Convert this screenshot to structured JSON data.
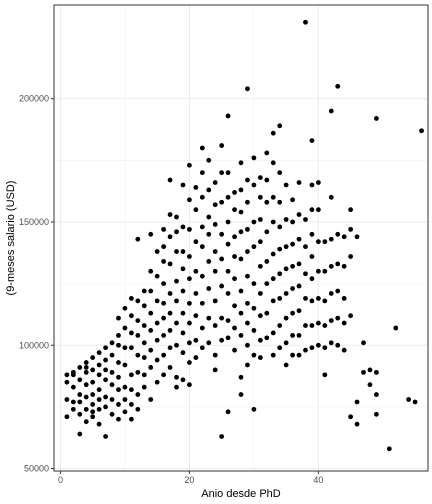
{
  "chart_data": {
    "type": "scatter",
    "title": "",
    "xlabel": "Anio desde PhD",
    "ylabel": "(9-meses salario (USD)",
    "xlim": [
      -1,
      57
    ],
    "ylim": [
      49000,
      238000
    ],
    "x_ticks": [
      0,
      20,
      40
    ],
    "y_ticks": [
      50000,
      100000,
      150000,
      200000
    ],
    "x_tick_labels": [
      "0",
      "20",
      "40"
    ],
    "y_tick_labels": [
      "50000",
      "100000",
      "150000",
      "200000"
    ],
    "grid": true,
    "legend": "none",
    "point_color": "#000000",
    "points": [
      [
        1,
        88000
      ],
      [
        1,
        85000
      ],
      [
        1,
        78000
      ],
      [
        1,
        71000
      ],
      [
        2,
        89000
      ],
      [
        2,
        83000
      ],
      [
        2,
        77000
      ],
      [
        2,
        74000
      ],
      [
        2,
        88000
      ],
      [
        3,
        91000
      ],
      [
        3,
        86000
      ],
      [
        3,
        80000
      ],
      [
        3,
        72000
      ],
      [
        3,
        64000
      ],
      [
        3,
        77000
      ],
      [
        4,
        93000
      ],
      [
        4,
        89000
      ],
      [
        4,
        84000
      ],
      [
        4,
        79000
      ],
      [
        4,
        74000
      ],
      [
        4,
        69000
      ],
      [
        4,
        91000
      ],
      [
        5,
        95000
      ],
      [
        5,
        90000
      ],
      [
        5,
        85000
      ],
      [
        5,
        80000
      ],
      [
        5,
        76000
      ],
      [
        5,
        73000
      ],
      [
        5,
        71000
      ],
      [
        6,
        97000
      ],
      [
        6,
        92000
      ],
      [
        6,
        88000
      ],
      [
        6,
        82000
      ],
      [
        6,
        78000
      ],
      [
        6,
        74000
      ],
      [
        6,
        68000
      ],
      [
        7,
        99000
      ],
      [
        7,
        94000
      ],
      [
        7,
        86000
      ],
      [
        7,
        79000
      ],
      [
        7,
        75000
      ],
      [
        7,
        63000
      ],
      [
        7,
        90000
      ],
      [
        8,
        101000
      ],
      [
        8,
        96000
      ],
      [
        8,
        89000
      ],
      [
        8,
        84000
      ],
      [
        8,
        78000
      ],
      [
        8,
        72000
      ],
      [
        9,
        111000
      ],
      [
        9,
        104000
      ],
      [
        9,
        100000
      ],
      [
        9,
        93000
      ],
      [
        9,
        87000
      ],
      [
        9,
        82000
      ],
      [
        9,
        76000
      ],
      [
        9,
        70000
      ],
      [
        10,
        115000
      ],
      [
        10,
        107000
      ],
      [
        10,
        99000
      ],
      [
        10,
        92000
      ],
      [
        10,
        83000
      ],
      [
        10,
        78000
      ],
      [
        10,
        73000
      ],
      [
        11,
        119000
      ],
      [
        11,
        112000
      ],
      [
        11,
        105000
      ],
      [
        11,
        99000
      ],
      [
        11,
        88000
      ],
      [
        11,
        82000
      ],
      [
        11,
        76000
      ],
      [
        11,
        70000
      ],
      [
        12,
        143000
      ],
      [
        12,
        118000
      ],
      [
        12,
        110000
      ],
      [
        12,
        104000
      ],
      [
        12,
        96000
      ],
      [
        12,
        89000
      ],
      [
        12,
        80000
      ],
      [
        12,
        74000
      ],
      [
        13,
        122000
      ],
      [
        13,
        116000
      ],
      [
        13,
        108000
      ],
      [
        13,
        101000
      ],
      [
        13,
        95000
      ],
      [
        13,
        88000
      ],
      [
        13,
        83000
      ],
      [
        14,
        145000
      ],
      [
        14,
        130000
      ],
      [
        14,
        122000
      ],
      [
        14,
        113000
      ],
      [
        14,
        106000
      ],
      [
        14,
        98000
      ],
      [
        14,
        91000
      ],
      [
        14,
        78000
      ],
      [
        15,
        138000
      ],
      [
        15,
        128000
      ],
      [
        15,
        118000
      ],
      [
        15,
        109000
      ],
      [
        15,
        102000
      ],
      [
        15,
        94000
      ],
      [
        15,
        85000
      ],
      [
        16,
        147000
      ],
      [
        16,
        140000
      ],
      [
        16,
        134000
      ],
      [
        16,
        125000
      ],
      [
        16,
        117000
      ],
      [
        16,
        111000
      ],
      [
        16,
        104000
      ],
      [
        16,
        96000
      ],
      [
        16,
        88000
      ],
      [
        17,
        167000
      ],
      [
        17,
        153000
      ],
      [
        17,
        144000
      ],
      [
        17,
        133000
      ],
      [
        17,
        121000
      ],
      [
        17,
        113000
      ],
      [
        17,
        106000
      ],
      [
        17,
        99000
      ],
      [
        17,
        91000
      ],
      [
        18,
        152000
      ],
      [
        18,
        146000
      ],
      [
        18,
        138000
      ],
      [
        18,
        126000
      ],
      [
        18,
        118000
      ],
      [
        18,
        109000
      ],
      [
        18,
        100000
      ],
      [
        18,
        87000
      ],
      [
        18,
        83000
      ],
      [
        19,
        165000
      ],
      [
        19,
        148000
      ],
      [
        19,
        138000
      ],
      [
        19,
        131000
      ],
      [
        19,
        122000
      ],
      [
        19,
        113000
      ],
      [
        19,
        105000
      ],
      [
        19,
        97000
      ],
      [
        19,
        86000
      ],
      [
        20,
        173000
      ],
      [
        20,
        159000
      ],
      [
        20,
        147000
      ],
      [
        20,
        136000
      ],
      [
        20,
        127000
      ],
      [
        20,
        117000
      ],
      [
        20,
        109000
      ],
      [
        20,
        101000
      ],
      [
        20,
        93000
      ],
      [
        20,
        84000
      ],
      [
        21,
        164000
      ],
      [
        21,
        155000
      ],
      [
        21,
        142000
      ],
      [
        21,
        130000
      ],
      [
        21,
        121000
      ],
      [
        21,
        112000
      ],
      [
        21,
        102000
      ],
      [
        21,
        95000
      ],
      [
        22,
        180000
      ],
      [
        22,
        170000
      ],
      [
        22,
        160000
      ],
      [
        22,
        148000
      ],
      [
        22,
        140000
      ],
      [
        22,
        128000
      ],
      [
        22,
        117000
      ],
      [
        22,
        107000
      ],
      [
        22,
        99000
      ],
      [
        23,
        175000
      ],
      [
        23,
        163000
      ],
      [
        23,
        152000
      ],
      [
        23,
        145000
      ],
      [
        23,
        134000
      ],
      [
        23,
        123000
      ],
      [
        23,
        111000
      ],
      [
        23,
        101000
      ],
      [
        24,
        166000
      ],
      [
        24,
        157000
      ],
      [
        24,
        149000
      ],
      [
        24,
        138000
      ],
      [
        24,
        130000
      ],
      [
        24,
        118000
      ],
      [
        24,
        108000
      ],
      [
        24,
        96000
      ],
      [
        24,
        90000
      ],
      [
        25,
        181000
      ],
      [
        25,
        170000
      ],
      [
        25,
        158000
      ],
      [
        25,
        145000
      ],
      [
        25,
        135000
      ],
      [
        25,
        124000
      ],
      [
        25,
        111000
      ],
      [
        25,
        102000
      ],
      [
        25,
        63000
      ],
      [
        26,
        193000
      ],
      [
        26,
        170000
      ],
      [
        26,
        160000
      ],
      [
        26,
        150000
      ],
      [
        26,
        141000
      ],
      [
        26,
        130000
      ],
      [
        26,
        121000
      ],
      [
        26,
        110000
      ],
      [
        26,
        103000
      ],
      [
        26,
        73000
      ],
      [
        27,
        162000
      ],
      [
        27,
        155000
      ],
      [
        27,
        144000
      ],
      [
        27,
        136000
      ],
      [
        27,
        127000
      ],
      [
        27,
        116000
      ],
      [
        27,
        107000
      ],
      [
        27,
        98000
      ],
      [
        28,
        174000
      ],
      [
        28,
        163000
      ],
      [
        28,
        154000
      ],
      [
        28,
        146000
      ],
      [
        28,
        135000
      ],
      [
        28,
        122000
      ],
      [
        28,
        113000
      ],
      [
        28,
        104000
      ],
      [
        28,
        87000
      ],
      [
        28,
        80000
      ],
      [
        29,
        204000
      ],
      [
        29,
        167000
      ],
      [
        29,
        158000
      ],
      [
        29,
        147000
      ],
      [
        29,
        138000
      ],
      [
        29,
        128000
      ],
      [
        29,
        117000
      ],
      [
        29,
        109000
      ],
      [
        29,
        100000
      ],
      [
        29,
        92000
      ],
      [
        30,
        176000
      ],
      [
        30,
        165000
      ],
      [
        30,
        150000
      ],
      [
        30,
        140000
      ],
      [
        30,
        125000
      ],
      [
        30,
        115000
      ],
      [
        30,
        106000
      ],
      [
        30,
        96000
      ],
      [
        30,
        74000
      ],
      [
        31,
        168000
      ],
      [
        31,
        160000
      ],
      [
        31,
        151000
      ],
      [
        31,
        142000
      ],
      [
        31,
        132000
      ],
      [
        31,
        121000
      ],
      [
        31,
        112000
      ],
      [
        31,
        102000
      ],
      [
        31,
        95000
      ],
      [
        32,
        178000
      ],
      [
        32,
        167000
      ],
      [
        32,
        158000
      ],
      [
        32,
        146000
      ],
      [
        32,
        134000
      ],
      [
        32,
        125000
      ],
      [
        32,
        113000
      ],
      [
        32,
        103000
      ],
      [
        33,
        186000
      ],
      [
        33,
        174000
      ],
      [
        33,
        160000
      ],
      [
        33,
        150000
      ],
      [
        33,
        137000
      ],
      [
        33,
        127000
      ],
      [
        33,
        118000
      ],
      [
        33,
        105000
      ],
      [
        33,
        96000
      ],
      [
        34,
        189000
      ],
      [
        34,
        170000
      ],
      [
        34,
        158000
      ],
      [
        34,
        148000
      ],
      [
        34,
        139000
      ],
      [
        34,
        129000
      ],
      [
        34,
        119000
      ],
      [
        34,
        108000
      ],
      [
        34,
        99000
      ],
      [
        35,
        165000
      ],
      [
        35,
        151000
      ],
      [
        35,
        140000
      ],
      [
        35,
        131000
      ],
      [
        35,
        121000
      ],
      [
        35,
        111000
      ],
      [
        35,
        101000
      ],
      [
        35,
        92000
      ],
      [
        36,
        159000
      ],
      [
        36,
        150000
      ],
      [
        36,
        141000
      ],
      [
        36,
        132000
      ],
      [
        36,
        123000
      ],
      [
        36,
        113000
      ],
      [
        36,
        104000
      ],
      [
        36,
        96000
      ],
      [
        37,
        166000
      ],
      [
        37,
        153000
      ],
      [
        37,
        143000
      ],
      [
        37,
        133000
      ],
      [
        37,
        124000
      ],
      [
        37,
        114000
      ],
      [
        37,
        104000
      ],
      [
        37,
        96000
      ],
      [
        38,
        231000
      ],
      [
        38,
        151000
      ],
      [
        38,
        140000
      ],
      [
        38,
        129000
      ],
      [
        38,
        119000
      ],
      [
        38,
        108000
      ],
      [
        38,
        98000
      ],
      [
        39,
        183000
      ],
      [
        39,
        165000
      ],
      [
        39,
        155000
      ],
      [
        39,
        145000
      ],
      [
        39,
        136000
      ],
      [
        39,
        127000
      ],
      [
        39,
        118000
      ],
      [
        39,
        108000
      ],
      [
        39,
        99000
      ],
      [
        40,
        166000
      ],
      [
        40,
        155000
      ],
      [
        40,
        142000
      ],
      [
        40,
        130000
      ],
      [
        40,
        119000
      ],
      [
        40,
        109000
      ],
      [
        40,
        100000
      ],
      [
        41,
        142000
      ],
      [
        41,
        130000
      ],
      [
        41,
        118000
      ],
      [
        41,
        108000
      ],
      [
        41,
        99000
      ],
      [
        41,
        88000
      ],
      [
        42,
        195000
      ],
      [
        42,
        160000
      ],
      [
        42,
        143000
      ],
      [
        42,
        132000
      ],
      [
        42,
        121000
      ],
      [
        42,
        110000
      ],
      [
        42,
        101000
      ],
      [
        43,
        205000
      ],
      [
        43,
        145000
      ],
      [
        43,
        133000
      ],
      [
        43,
        122000
      ],
      [
        43,
        111000
      ],
      [
        43,
        100000
      ],
      [
        44,
        144000
      ],
      [
        44,
        132000
      ],
      [
        44,
        119000
      ],
      [
        44,
        109000
      ],
      [
        44,
        98000
      ],
      [
        45,
        155000
      ],
      [
        45,
        147000
      ],
      [
        45,
        136000
      ],
      [
        45,
        112000
      ],
      [
        45,
        71000
      ],
      [
        46,
        144000
      ],
      [
        46,
        77000
      ],
      [
        46,
        68000
      ],
      [
        47,
        101000
      ],
      [
        47,
        89000
      ],
      [
        48,
        90000
      ],
      [
        48,
        84000
      ],
      [
        49,
        192000
      ],
      [
        49,
        89000
      ],
      [
        49,
        80000
      ],
      [
        49,
        72000
      ],
      [
        51,
        58000
      ],
      [
        52,
        107000
      ],
      [
        54,
        78000
      ],
      [
        55,
        77000
      ],
      [
        56,
        187000
      ]
    ]
  }
}
